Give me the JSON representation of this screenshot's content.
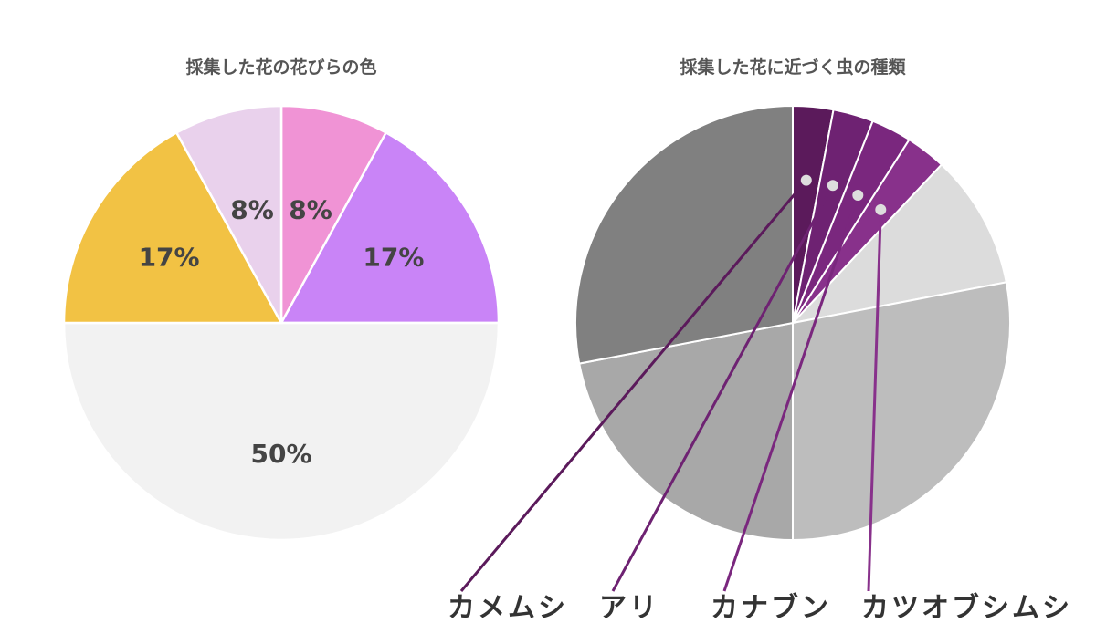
{
  "chart_data": [
    {
      "type": "pie",
      "title": "採集した花の花びらの色",
      "slices": [
        {
          "value": 8,
          "label": "8%",
          "color": "#F093D5"
        },
        {
          "value": 17,
          "label": "17%",
          "color": "#C984F7"
        },
        {
          "value": 50,
          "label": "50%",
          "color": "#F2F2F2"
        },
        {
          "value": 17,
          "label": "17%",
          "color": "#F2C244"
        },
        {
          "value": 8,
          "label": "8%",
          "color": "#E9D1EC"
        }
      ]
    },
    {
      "type": "pie",
      "title": "採集した花に近づく虫の種類",
      "slices": [
        {
          "value": 3,
          "color": "#5B1A5B",
          "callout": "カメムシ"
        },
        {
          "value": 3,
          "color": "#6E2272",
          "callout": "アリ"
        },
        {
          "value": 3,
          "color": "#7A277E",
          "callout": "カナブン"
        },
        {
          "value": 3,
          "color": "#88318B",
          "callout": "カツオブシムシ"
        },
        {
          "value": 10,
          "color": "#DCDCDC"
        },
        {
          "value": 28,
          "color": "#BDBDBD"
        },
        {
          "value": 22,
          "color": "#A8A8A8"
        },
        {
          "value": 28,
          "color": "#808080"
        }
      ]
    }
  ]
}
